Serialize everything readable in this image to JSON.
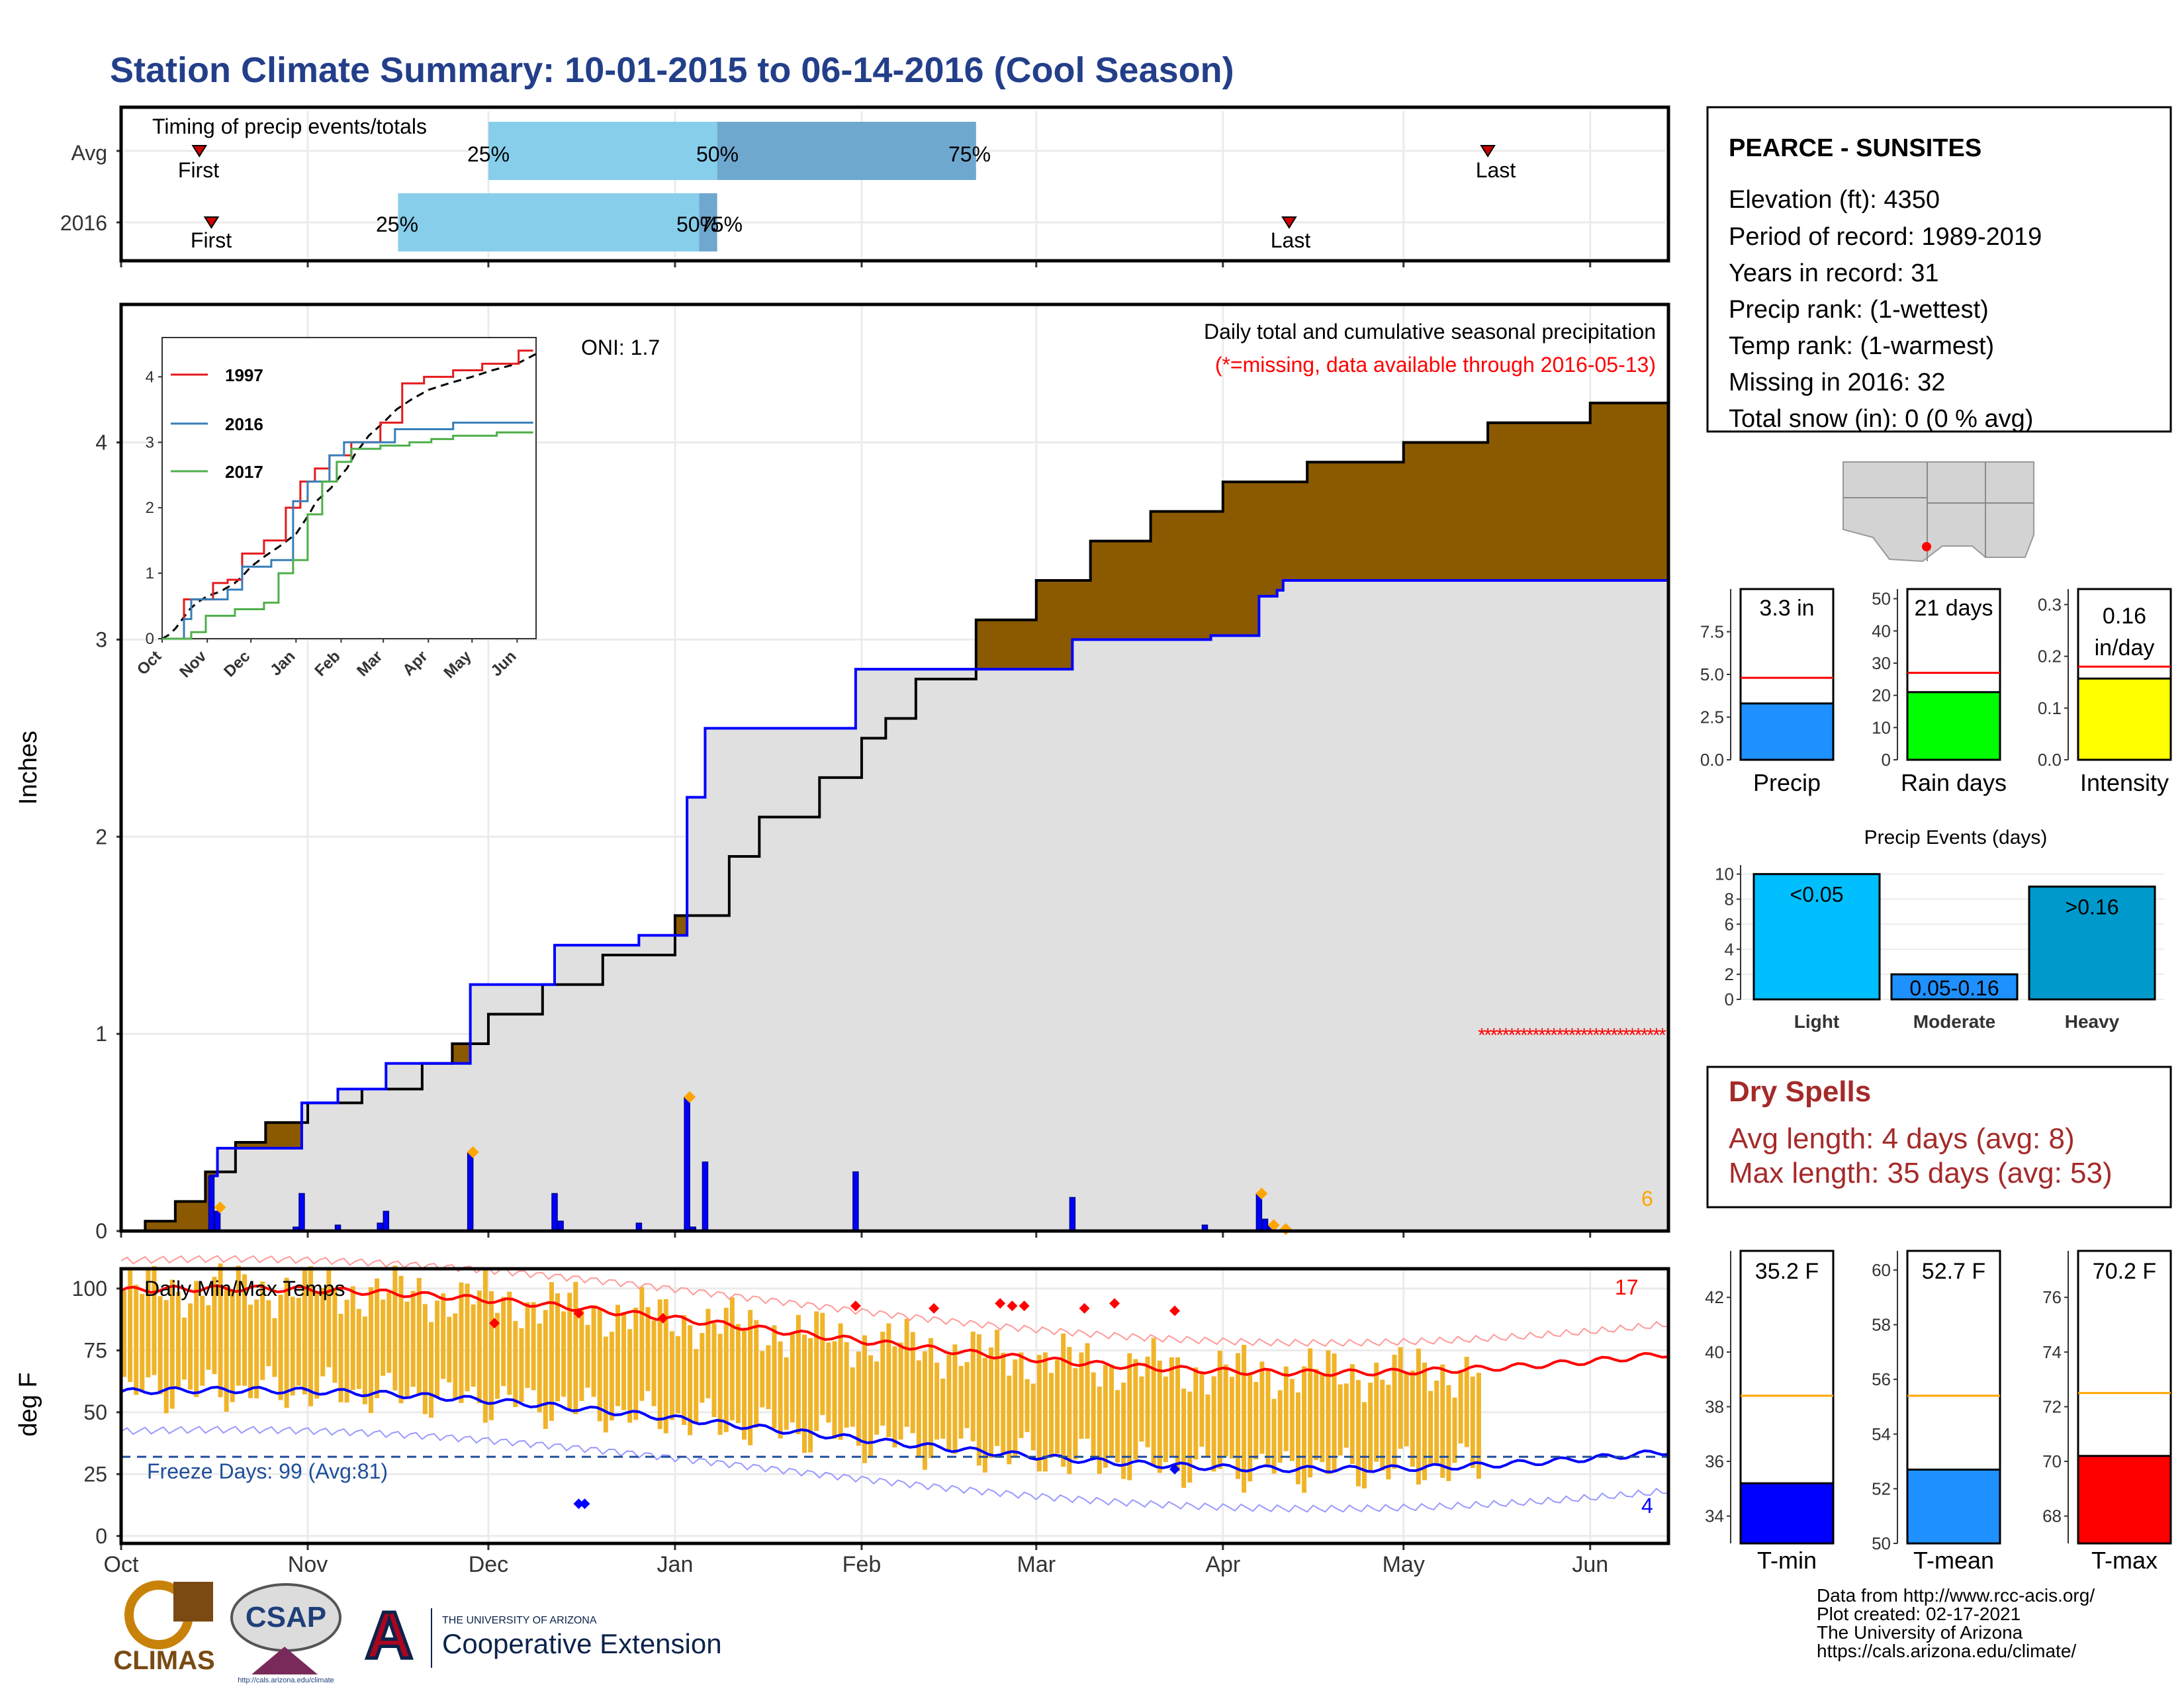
{
  "title": "Station Climate Summary: 10-01-2015 to 06-14-2016 (Cool Season)",
  "colors": {
    "title": "#233f8a",
    "brown": "#8b5a00",
    "green": "#008a00",
    "grey_fill": "#e0e0e0",
    "blue": "#0000ff",
    "orange": "#ffa500",
    "red": "#ff0000",
    "gold": "#f0b429",
    "light_blue": "#87ceeb",
    "steel_blue": "#6fa8cf",
    "dry_red": "#a52a2a"
  },
  "timing": {
    "title": "Timing of precip events/totals",
    "rows": [
      "Avg",
      "2016"
    ],
    "avg": {
      "first_date": "10-14",
      "last_date": "05-15",
      "p25": "12-01",
      "p50": "01-08",
      "p75": "02-20"
    },
    "y2016": {
      "first_date": "10-16",
      "last_date": "04-12",
      "p25": "11-16",
      "p50": "01-05",
      "p75": "01-08"
    },
    "first_label": "First",
    "last_label": "Last",
    "p25_label": "25%",
    "p50_label": "50%",
    "p75_label": "75%"
  },
  "precip_panel": {
    "ylabel": "Inches",
    "yticks": [
      0,
      1,
      2,
      3,
      4
    ],
    "oni": "ONI: 1.7",
    "note1": "Daily total and cumulative seasonal precipitation",
    "note2": "(*=missing, data available through 2016-05-13)",
    "missing_count": "6",
    "avg_cumulative": [
      [
        "10-01",
        0
      ],
      [
        "10-05",
        0.05
      ],
      [
        "10-10",
        0.15
      ],
      [
        "10-15",
        0.3
      ],
      [
        "10-20",
        0.45
      ],
      [
        "10-25",
        0.55
      ],
      [
        "11-01",
        0.65
      ],
      [
        "11-10",
        0.72
      ],
      [
        "11-20",
        0.85
      ],
      [
        "11-25",
        0.95
      ],
      [
        "12-01",
        1.1
      ],
      [
        "12-10",
        1.25
      ],
      [
        "12-20",
        1.4
      ],
      [
        "01-01",
        1.6
      ],
      [
        "01-10",
        1.9
      ],
      [
        "01-15",
        2.1
      ],
      [
        "01-25",
        2.3
      ],
      [
        "02-01",
        2.5
      ],
      [
        "02-05",
        2.6
      ],
      [
        "02-10",
        2.8
      ],
      [
        "02-20",
        3.1
      ],
      [
        "03-01",
        3.3
      ],
      [
        "03-10",
        3.5
      ],
      [
        "03-20",
        3.65
      ],
      [
        "04-01",
        3.8
      ],
      [
        "04-15",
        3.9
      ],
      [
        "05-01",
        4.0
      ],
      [
        "05-15",
        4.1
      ],
      [
        "06-01",
        4.2
      ],
      [
        "06-14",
        4.35
      ]
    ],
    "year_cumulative": [
      [
        "10-01",
        0
      ],
      [
        "10-16",
        0
      ],
      [
        "10-16",
        0.28
      ],
      [
        "10-17",
        0.28
      ],
      [
        "10-17",
        0.42
      ],
      [
        "10-31",
        0.42
      ],
      [
        "10-31",
        0.65
      ],
      [
        "11-06",
        0.65
      ],
      [
        "11-06",
        0.72
      ],
      [
        "11-14",
        0.72
      ],
      [
        "11-14",
        0.85
      ],
      [
        "11-28",
        0.85
      ],
      [
        "11-28",
        1.25
      ],
      [
        "12-12",
        1.25
      ],
      [
        "12-12",
        1.45
      ],
      [
        "12-26",
        1.45
      ],
      [
        "12-26",
        1.5
      ],
      [
        "01-03",
        1.5
      ],
      [
        "01-03",
        2.2
      ],
      [
        "01-06",
        2.2
      ],
      [
        "01-06",
        2.55
      ],
      [
        "01-31",
        2.55
      ],
      [
        "01-31",
        2.85
      ],
      [
        "03-07",
        2.85
      ],
      [
        "03-07",
        3.0
      ],
      [
        "03-30",
        3.0
      ],
      [
        "03-30",
        3.02
      ],
      [
        "04-07",
        3.02
      ],
      [
        "04-07",
        3.22
      ],
      [
        "04-10",
        3.22
      ],
      [
        "04-10",
        3.25
      ],
      [
        "04-11",
        3.25
      ],
      [
        "04-11",
        3.3
      ],
      [
        "06-14",
        3.3
      ]
    ],
    "daily_bars": [
      [
        "10-16",
        0.28
      ],
      [
        "10-17",
        0.1
      ],
      [
        "10-30",
        0.02
      ],
      [
        "10-31",
        0.19
      ],
      [
        "11-06",
        0.03
      ],
      [
        "11-13",
        0.04
      ],
      [
        "11-14",
        0.1
      ],
      [
        "11-28",
        0.4
      ],
      [
        "12-12",
        0.19
      ],
      [
        "12-13",
        0.05
      ],
      [
        "12-26",
        0.04
      ],
      [
        "01-03",
        0.68
      ],
      [
        "01-04",
        0.02
      ],
      [
        "01-06",
        0.35
      ],
      [
        "01-31",
        0.3
      ],
      [
        "03-07",
        0.17
      ],
      [
        "03-29",
        0.03
      ],
      [
        "04-07",
        0.19
      ],
      [
        "04-08",
        0.06
      ],
      [
        "04-09",
        0.03
      ]
    ],
    "orange_markers": [
      [
        "10-17",
        0.12
      ],
      [
        "11-28",
        0.4
      ],
      [
        "01-03",
        0.68
      ],
      [
        "04-07",
        0.19
      ],
      [
        "04-09",
        0.03
      ],
      [
        "04-11",
        0.01
      ]
    ],
    "missing_start": "05-14",
    "missing_value": 1.0
  },
  "inset": {
    "ticks_x": [
      "Oct",
      "Nov",
      "Dec",
      "Jan",
      "Feb",
      "Mar",
      "Apr",
      "May",
      "Jun"
    ],
    "ticks_y": [
      0,
      1,
      2,
      3,
      4
    ],
    "series": [
      {
        "name": "1997",
        "color": "#e41a1c",
        "points": [
          [
            0,
            0
          ],
          [
            15,
            0.6
          ],
          [
            25,
            0.6
          ],
          [
            35,
            0.85
          ],
          [
            45,
            0.9
          ],
          [
            55,
            1.3
          ],
          [
            70,
            1.5
          ],
          [
            85,
            2.0
          ],
          [
            95,
            2.4
          ],
          [
            105,
            2.6
          ],
          [
            115,
            2.8
          ],
          [
            130,
            3.0
          ],
          [
            150,
            3.3
          ],
          [
            165,
            3.9
          ],
          [
            180,
            4.0
          ],
          [
            200,
            4.1
          ],
          [
            220,
            4.2
          ],
          [
            235,
            4.2
          ],
          [
            245,
            4.4
          ],
          [
            255,
            4.4
          ]
        ]
      },
      {
        "name": "2016",
        "color": "#377eb8",
        "points": [
          [
            0,
            0
          ],
          [
            15,
            0.3
          ],
          [
            20,
            0.6
          ],
          [
            35,
            0.6
          ],
          [
            45,
            0.75
          ],
          [
            55,
            1.1
          ],
          [
            75,
            1.2
          ],
          [
            90,
            2.1
          ],
          [
            100,
            2.4
          ],
          [
            115,
            2.8
          ],
          [
            125,
            3.0
          ],
          [
            150,
            3.0
          ],
          [
            160,
            3.2
          ],
          [
            180,
            3.2
          ],
          [
            200,
            3.3
          ],
          [
            255,
            3.3
          ]
        ]
      },
      {
        "name": "2017",
        "color": "#4daf4a",
        "points": [
          [
            0,
            0
          ],
          [
            20,
            0.1
          ],
          [
            30,
            0.35
          ],
          [
            50,
            0.45
          ],
          [
            70,
            0.55
          ],
          [
            80,
            1.0
          ],
          [
            90,
            1.2
          ],
          [
            100,
            1.9
          ],
          [
            110,
            2.4
          ],
          [
            120,
            2.7
          ],
          [
            130,
            2.9
          ],
          [
            150,
            2.95
          ],
          [
            170,
            3.0
          ],
          [
            185,
            3.05
          ],
          [
            200,
            3.1
          ],
          [
            230,
            3.15
          ],
          [
            255,
            3.15
          ]
        ]
      }
    ]
  },
  "months": [
    "Oct",
    "Nov",
    "Dec",
    "Jan",
    "Feb",
    "Mar",
    "Apr",
    "May",
    "Jun"
  ],
  "temp_panel": {
    "title": "Daily Min/Max Temps",
    "ylabel": "deg F",
    "yticks": [
      0,
      25,
      50,
      75,
      100
    ],
    "freeze": "Freeze Days: 99 (Avg:81)",
    "freeze_line": 32,
    "count_hot": "17",
    "count_cold": "4",
    "data_end": "05-13"
  },
  "station": {
    "name": "PEARCE - SUNSITES",
    "lines": [
      "Elevation (ft): 4350",
      "Period of record: 1989-2019",
      "Years in record: 31",
      "Precip rank:  (1-wettest)",
      "Temp rank:  (1-warmest)",
      "Missing in 2016: 32",
      "Total snow (in): 0 (0 % avg)"
    ]
  },
  "precip_bars": [
    {
      "label": "Precip",
      "value": 3.3,
      "text": "3.3 in",
      "avg": 4.8,
      "ymax": 10.0,
      "ticks": [
        "0.0",
        "2.5",
        "5.0",
        "7.5"
      ],
      "tickvals": [
        0,
        2.5,
        5,
        7.5
      ],
      "color": "#1e90ff"
    },
    {
      "label": "Rain days",
      "value": 21,
      "text": "21 days",
      "avg": 27,
      "ymax": 53,
      "ticks": [
        "0",
        "10",
        "20",
        "30",
        "40",
        "50"
      ],
      "tickvals": [
        0,
        10,
        20,
        30,
        40,
        50
      ],
      "color": "#00ff00"
    },
    {
      "label": "Intensity",
      "value": 0.157,
      "text": "0.16",
      "text2": "in/day",
      "avg": 0.18,
      "ymax": 0.33,
      "ticks": [
        "0.0",
        "0.1",
        "0.2",
        "0.3"
      ],
      "tickvals": [
        0,
        0.1,
        0.2,
        0.3
      ],
      "color": "#ffff00"
    }
  ],
  "events": {
    "title": "Precip Events (days)",
    "categories": [
      "Light",
      "Moderate",
      "Heavy"
    ],
    "inside": [
      "<0.05",
      "0.05-0.16",
      ">0.16"
    ],
    "values": [
      10,
      2,
      9
    ],
    "colors": [
      "#00bfff",
      "#1e90ff",
      "#0099cc"
    ],
    "yticks": [
      "0",
      "2",
      "4",
      "6",
      "8",
      "10"
    ]
  },
  "dry": {
    "title": "Dry Spells",
    "line1": "Avg length: 4 days (avg: 8)",
    "line2": "Max length: 35 days (avg: 53)"
  },
  "temp_bars": [
    {
      "label": "T-min",
      "value": 35.2,
      "text": "35.2 F",
      "avg": 38.4,
      "ymin": 33,
      "ymax": 43.7,
      "ticks": [
        "34",
        "36",
        "38",
        "40",
        "42"
      ],
      "tickvals": [
        34,
        36,
        38,
        40,
        42
      ],
      "color": "#0000ff"
    },
    {
      "label": "T-mean",
      "value": 52.7,
      "text": "52.7 F",
      "avg": 55.4,
      "ymin": 50,
      "ymax": 60.7,
      "ticks": [
        "50",
        "52",
        "54",
        "56",
        "58",
        "60"
      ],
      "tickvals": [
        50,
        52,
        54,
        56,
        58,
        60
      ],
      "color": "#1e90ff"
    },
    {
      "label": "T-max",
      "value": 70.2,
      "text": "70.2 F",
      "avg": 72.5,
      "ymin": 67,
      "ymax": 77.7,
      "ticks": [
        "68",
        "70",
        "72",
        "74",
        "76"
      ],
      "tickvals": [
        68,
        70,
        72,
        74,
        76
      ],
      "color": "#ff0000"
    }
  ],
  "footer": {
    "lines": [
      "Data from http://www.rcc-acis.org/",
      "Plot created: 02-17-2021",
      "The University of Arizona",
      "https://cals.arizona.edu/climate/"
    ]
  },
  "logos": {
    "climas": "CLIMAS",
    "csap": "CSAP",
    "csap_url": "http://cals.arizona.edu/climate",
    "ua_line1": "THE UNIVERSITY OF ARIZONA",
    "ua_line2": "Cooperative Extension",
    "ua_letter": "A"
  },
  "chart_data": [
    {
      "type": "bar",
      "title": "Timing of precip events/totals",
      "categories": [
        "Avg",
        "2016"
      ],
      "series": [
        {
          "name": "First",
          "values": [
            "10-14",
            "10-16"
          ]
        },
        {
          "name": "25%",
          "values": [
            "12-01",
            "11-16"
          ]
        },
        {
          "name": "50%",
          "values": [
            "01-08",
            "01-05"
          ]
        },
        {
          "name": "75%",
          "values": [
            "02-20",
            "01-08"
          ]
        },
        {
          "name": "Last",
          "values": [
            "05-15",
            "04-12"
          ]
        }
      ]
    },
    {
      "type": "area",
      "title": "Daily total and cumulative seasonal precipitation",
      "ylabel": "Inches",
      "ylim": [
        0,
        4.7
      ],
      "x": [
        "Oct",
        "Nov",
        "Dec",
        "Jan",
        "Feb",
        "Mar",
        "Apr",
        "May",
        "Jun"
      ]
    },
    {
      "type": "line",
      "title": "Daily Min/Max Temps",
      "ylabel": "deg F",
      "ylim": [
        -3,
        108
      ]
    },
    {
      "type": "bar",
      "categories": [
        "Precip",
        "Rain days",
        "Intensity"
      ],
      "values": [
        3.3,
        21,
        0.16
      ]
    },
    {
      "type": "bar",
      "title": "Precip Events (days)",
      "categories": [
        "Light",
        "Moderate",
        "Heavy"
      ],
      "values": [
        10,
        2,
        9
      ]
    },
    {
      "type": "bar",
      "categories": [
        "T-min",
        "T-mean",
        "T-max"
      ],
      "values": [
        35.2,
        52.7,
        70.2
      ]
    }
  ]
}
